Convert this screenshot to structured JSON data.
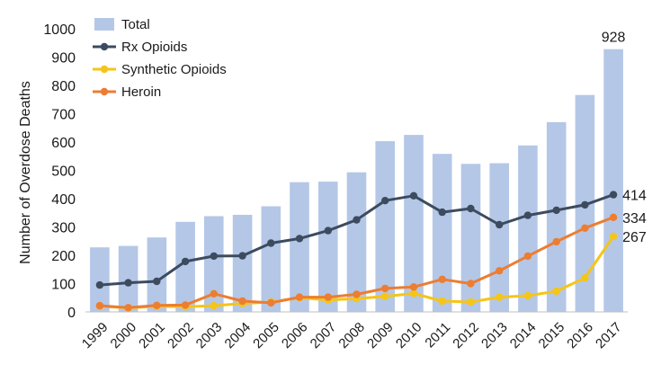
{
  "chart_data": {
    "type": "bar",
    "categories": [
      "1999",
      "2000",
      "2001",
      "2002",
      "2003",
      "2004",
      "2005",
      "2006",
      "2007",
      "2008",
      "2009",
      "2010",
      "2011",
      "2012",
      "2013",
      "2014",
      "2015",
      "2016",
      "2017"
    ],
    "ylabel": "Number of Overdose Deaths",
    "xlabel": "",
    "ylim": [
      0,
      1000
    ],
    "yticks": [
      "0",
      "100",
      "200",
      "300",
      "400",
      "500",
      "600",
      "700",
      "800",
      "900",
      "1000"
    ],
    "grid": false,
    "legend_position": "top-left",
    "series": [
      {
        "name": "Total",
        "type": "bar",
        "color": "#b4c7e7",
        "values": [
          228,
          233,
          263,
          318,
          338,
          343,
          373,
          458,
          460,
          493,
          603,
          625,
          558,
          523,
          525,
          588,
          670,
          766,
          928
        ]
      },
      {
        "name": "Rx Opioids",
        "type": "line",
        "color": "#3d4b5f",
        "values": [
          95,
          103,
          108,
          178,
          197,
          198,
          243,
          259,
          287,
          325,
          393,
          410,
          352,
          365,
          308,
          341,
          359,
          378,
          414
        ]
      },
      {
        "name": "Synthetic Opioids",
        "type": "line",
        "color": "#f5c518",
        "values": [
          20,
          14,
          20,
          18,
          22,
          30,
          35,
          50,
          42,
          47,
          55,
          65,
          38,
          35,
          52,
          57,
          73,
          120,
          267
        ]
      },
      {
        "name": "Heroin",
        "type": "line",
        "color": "#ed7d31",
        "values": [
          22,
          15,
          23,
          24,
          64,
          38,
          32,
          52,
          52,
          62,
          83,
          88,
          115,
          100,
          145,
          197,
          248,
          296,
          334
        ]
      }
    ],
    "annotations": [
      {
        "series": "Total",
        "text": "928"
      },
      {
        "series": "Rx Opioids",
        "text": "414"
      },
      {
        "series": "Heroin",
        "text": "334"
      },
      {
        "series": "Synthetic Opioids",
        "text": "267"
      }
    ]
  }
}
